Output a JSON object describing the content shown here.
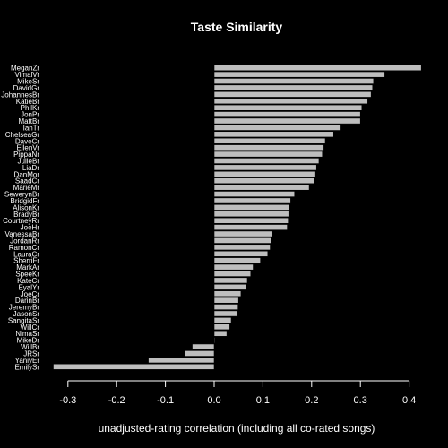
{
  "chart_data": {
    "type": "bar",
    "orientation": "horizontal",
    "title": "Taste Similarity",
    "xlabel": "unadjusted-rating correlation (including all co-rated songs)",
    "ylabel": "",
    "xlim": [
      -0.33,
      0.43
    ],
    "xticks": [
      "-0.3",
      "-0.2",
      "-0.1",
      "0.0",
      "0.1",
      "0.2",
      "0.3",
      "0.4"
    ],
    "bar_color": "#bebebe",
    "background": "#000000",
    "categories": [
      "MeganZr",
      "VimalVr",
      "MikeSr",
      "DavidGr",
      "JohannesBr",
      "KatieBr",
      "PhilKr",
      "JonPr",
      "MattBr",
      "IanTr",
      "ChelseaGr",
      "DaveCr",
      "EllenVr",
      "PippaNr",
      "JulieBr",
      "LiaDr",
      "DanMor",
      "SaadCr",
      "MarieMr",
      "SewerynBr",
      "BridgidFr",
      "AlisonKr",
      "BradyBr",
      "CourtneyRr",
      "JoeHr",
      "VanessaBr",
      "JordanRr",
      "RamonCr",
      "LauraCr",
      "SherriFr",
      "MarkAr",
      "SpeeKr",
      "KateCr",
      "EyalYr",
      "JoeCr",
      "DarinBr",
      "JeremyBr",
      "JasonSr",
      "SangitaSr",
      "WillCr",
      "NimaSr",
      "MikeDr",
      "WillBr",
      "JRSr",
      "YaniyEr",
      "EmilySr"
    ],
    "values": [
      0.425,
      0.35,
      0.327,
      0.325,
      0.322,
      0.315,
      0.303,
      0.3,
      0.3,
      0.26,
      0.245,
      0.228,
      0.225,
      0.222,
      0.215,
      0.21,
      0.208,
      0.205,
      0.195,
      0.165,
      0.157,
      0.155,
      0.153,
      0.152,
      0.15,
      0.12,
      0.117,
      0.115,
      0.11,
      0.095,
      0.08,
      0.075,
      0.068,
      0.065,
      0.055,
      0.05,
      0.049,
      0.048,
      0.035,
      0.032,
      0.026,
      0.001,
      -0.045,
      -0.06,
      -0.135,
      -0.33
    ]
  }
}
